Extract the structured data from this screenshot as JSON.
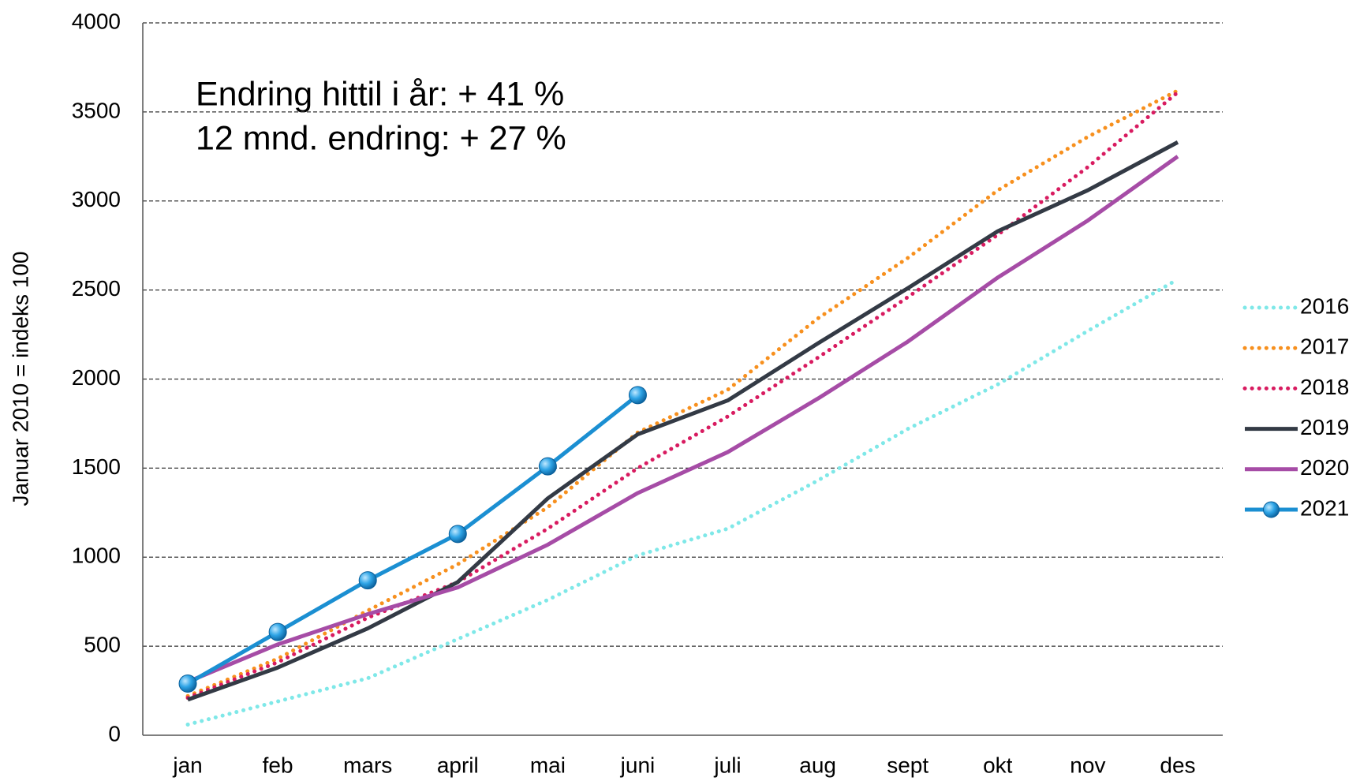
{
  "chart_data": {
    "type": "line",
    "y_label": "Januar 2010 = indeks 100",
    "annotations": [
      "Endring hittil i år: + 41 %",
      "12 mnd. endring: + 27 %"
    ],
    "categories": [
      "jan",
      "feb",
      "mars",
      "april",
      "mai",
      "juni",
      "juli",
      "aug",
      "sept",
      "okt",
      "nov",
      "des"
    ],
    "ylim": [
      0,
      4000
    ],
    "yticks": [
      0,
      500,
      1000,
      1500,
      2000,
      2500,
      3000,
      3500,
      4000
    ],
    "grid": true,
    "legend": "right",
    "series": [
      {
        "name": "2016",
        "color": "#7fe8e8",
        "style": "dotted",
        "values": [
          60,
          190,
          320,
          540,
          760,
          1010,
          1160,
          1430,
          1720,
          1970,
          2270,
          2560
        ]
      },
      {
        "name": "2017",
        "color": "#f7901e",
        "style": "dotted",
        "values": [
          220,
          430,
          700,
          960,
          1280,
          1700,
          1940,
          2340,
          2680,
          3060,
          3360,
          3620
        ]
      },
      {
        "name": "2018",
        "color": "#d81b60",
        "style": "dotted",
        "values": [
          210,
          410,
          660,
          860,
          1160,
          1500,
          1790,
          2120,
          2460,
          2810,
          3190,
          3610
        ]
      },
      {
        "name": "2019",
        "color": "#333a45",
        "style": "solid",
        "values": [
          200,
          380,
          600,
          860,
          1330,
          1690,
          1880,
          2200,
          2510,
          2830,
          3060,
          3330
        ]
      },
      {
        "name": "2020",
        "color": "#a64ca6",
        "style": "solid",
        "values": [
          300,
          510,
          680,
          830,
          1070,
          1360,
          1590,
          1890,
          2210,
          2570,
          2890,
          3250
        ]
      },
      {
        "name": "2021",
        "color": "#1b8fd2",
        "style": "marker",
        "values": [
          290,
          580,
          870,
          1130,
          1510,
          1910,
          null,
          null,
          null,
          null,
          null,
          null
        ]
      }
    ]
  }
}
